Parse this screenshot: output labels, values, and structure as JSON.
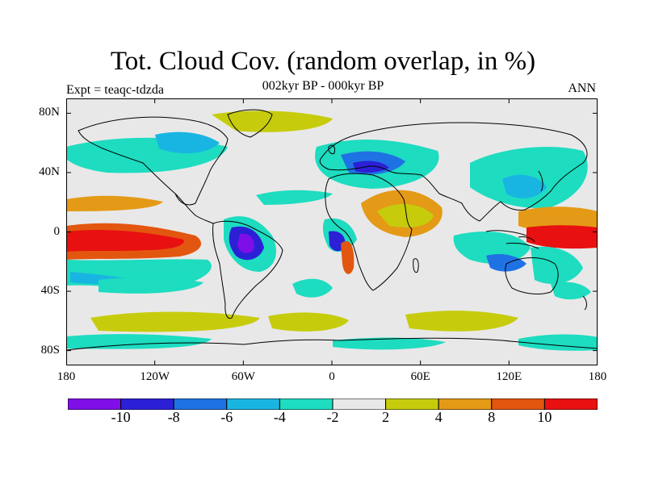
{
  "header": {
    "title": "Tot. Cloud Cov. (random overlap, in %)",
    "experiment": "Expt = teaqc-tdzda",
    "period": "002kyr BP - 000kyr BP",
    "season": "ANN"
  },
  "map": {
    "projection": "cylindrical equidistant",
    "lon_range": [
      -180,
      180
    ],
    "lat_range": [
      -90,
      90
    ],
    "lat_ticks": [
      {
        "value": 80,
        "label": "80N"
      },
      {
        "value": 40,
        "label": "40N"
      },
      {
        "value": 0,
        "label": "0"
      },
      {
        "value": -40,
        "label": "40S"
      },
      {
        "value": -80,
        "label": "80S"
      }
    ],
    "lon_ticks": [
      {
        "value": -180,
        "label": "180"
      },
      {
        "value": -120,
        "label": "120W"
      },
      {
        "value": -60,
        "label": "60W"
      },
      {
        "value": 0,
        "label": "0"
      },
      {
        "value": 60,
        "label": "60E"
      },
      {
        "value": 120,
        "label": "120E"
      },
      {
        "value": 180,
        "label": "180"
      }
    ],
    "background_color": "#e8e8e8",
    "coastline_color": "#000000"
  },
  "legend": {
    "colors": [
      "#7e0fe8",
      "#2b20d6",
      "#1f72e3",
      "#19b5e2",
      "#1ddcc0",
      "#e8e8e8",
      "#c6cc0c",
      "#e49a16",
      "#e3560f",
      "#e81010"
    ],
    "boundaries": [
      {
        "index": 1,
        "label": "-10"
      },
      {
        "index": 2,
        "label": "-8"
      },
      {
        "index": 3,
        "label": "-6"
      },
      {
        "index": 4,
        "label": "-4"
      },
      {
        "index": 5,
        "label": "-2"
      },
      {
        "index": 6,
        "label": "2"
      },
      {
        "index": 7,
        "label": "4"
      },
      {
        "index": 8,
        "label": "8"
      },
      {
        "index": 9,
        "label": "10"
      }
    ]
  }
}
